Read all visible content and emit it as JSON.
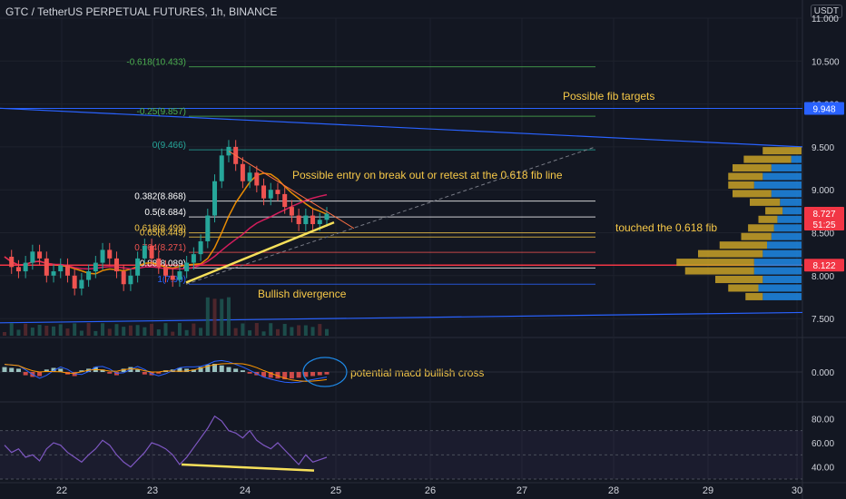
{
  "header": {
    "title": "GTC / TetherUS PERPETUAL FUTURES, 1h, BINANCE",
    "currency": "USDT"
  },
  "axis": {
    "price_ticks": [
      "11.000",
      "10.500",
      "10.000",
      "9.500",
      "9.000",
      "8.500",
      "8.000",
      "7.500"
    ],
    "price_values": [
      11.0,
      10.5,
      10.0,
      9.5,
      9.0,
      8.5,
      8.0,
      7.5
    ],
    "macd_ticks": [
      "0.000"
    ],
    "rsi_ticks": [
      "80.00",
      "60.00",
      "40.00"
    ],
    "rsi_values": [
      80,
      60,
      40
    ],
    "date_ticks": [
      "22",
      "23",
      "24",
      "25",
      "26",
      "27",
      "28",
      "29",
      "30"
    ],
    "badges": [
      {
        "text": "9.948",
        "value": 9.948,
        "color": "#2962ff"
      },
      {
        "text": "8.727",
        "value": 8.727,
        "color": "#f23645"
      },
      {
        "text": "51:25",
        "value": 8.6,
        "color": "#f23645"
      },
      {
        "text": "8.122",
        "value": 8.122,
        "color": "#f23645"
      }
    ]
  },
  "fib_levels": [
    {
      "label": "-0.618(10.433)",
      "value": 10.433,
      "color": "#4caf50"
    },
    {
      "label": "-0.25(9.857)",
      "value": 9.857,
      "color": "#4caf50"
    },
    {
      "label": "0(9.466)",
      "value": 9.466,
      "color": "#26a69a"
    },
    {
      "label": "0.382(8.868)",
      "value": 8.868,
      "color": "#ffffff"
    },
    {
      "label": "0.5(8.684)",
      "value": 8.684,
      "color": "#ffffff"
    },
    {
      "label": "0.618(8.499)",
      "value": 8.499,
      "color": "#f7c948"
    },
    {
      "label": "0.65(8.449)",
      "value": 8.449,
      "color": "#f7c948"
    },
    {
      "label": "0.764(8.271)",
      "value": 8.271,
      "color": "#ef5350"
    },
    {
      "label": "0.88(8.089)",
      "value": 8.089,
      "color": "#ffffff"
    },
    {
      "label": "1(7.90)",
      "value": 7.9,
      "color": "#2962ff"
    }
  ],
  "annotations": [
    {
      "text": "Possible fib targets",
      "color": "#f7c948"
    },
    {
      "text": "Possible entry on break out or retest at the 0.618 fib line",
      "color": "#f7c948"
    },
    {
      "text": "touched the 0.618 fib",
      "color": "#f7c948"
    },
    {
      "text": "Bullish divergence",
      "color": "#f7c948"
    },
    {
      "text": "potential macd bullish cross",
      "color": "#f7c948"
    }
  ],
  "chart_data": {
    "type": "candlestick",
    "title": "GTC / TetherUS PERPETUAL FUTURES, 1h, BINANCE",
    "x_axis_dates": [
      "22",
      "23",
      "24",
      "25",
      "26",
      "27",
      "28",
      "29",
      "30"
    ],
    "y_range": [
      7.3,
      11.0
    ],
    "price_path": [
      8.22,
      8.1,
      8.05,
      8.15,
      8.28,
      8.2,
      8.0,
      8.05,
      8.12,
      8.0,
      7.85,
      7.95,
      8.05,
      8.15,
      8.3,
      8.2,
      8.05,
      7.9,
      8.0,
      8.2,
      8.35,
      8.2,
      8.1,
      8.0,
      7.95,
      8.05,
      8.15,
      8.25,
      8.4,
      8.7,
      9.1,
      9.4,
      9.5,
      9.3,
      9.1,
      9.2,
      9.05,
      8.9,
      9.0,
      8.95,
      8.8,
      8.7,
      8.6,
      8.7,
      8.6,
      8.65,
      8.72
    ],
    "resistance_line": {
      "start": 9.95,
      "end": 9.5
    },
    "support_line": {
      "start": 7.45,
      "end": 7.57
    },
    "fib_levels": [
      10.433,
      9.857,
      9.466,
      8.868,
      8.684,
      8.499,
      8.449,
      8.271,
      8.089,
      7.9
    ],
    "horizontal_red_line": 8.122,
    "last_price": 8.727,
    "volume_profile": [
      {
        "price": 9.45,
        "buy": 0.45,
        "sell": 0.0
      },
      {
        "price": 9.35,
        "buy": 0.55,
        "sell": 0.12
      },
      {
        "price": 9.25,
        "buy": 0.45,
        "sell": 0.35
      },
      {
        "price": 9.15,
        "buy": 0.4,
        "sell": 0.45
      },
      {
        "price": 9.05,
        "buy": 0.3,
        "sell": 0.55
      },
      {
        "price": 8.95,
        "buy": 0.45,
        "sell": 0.35
      },
      {
        "price": 8.85,
        "buy": 0.35,
        "sell": 0.25
      },
      {
        "price": 8.75,
        "buy": 0.2,
        "sell": 0.22
      },
      {
        "price": 8.65,
        "buy": 0.22,
        "sell": 0.28
      },
      {
        "price": 8.55,
        "buy": 0.3,
        "sell": 0.32
      },
      {
        "price": 8.45,
        "buy": 0.35,
        "sell": 0.35
      },
      {
        "price": 8.35,
        "buy": 0.55,
        "sell": 0.4
      },
      {
        "price": 8.25,
        "buy": 0.75,
        "sell": 0.45
      },
      {
        "price": 8.15,
        "buy": 0.9,
        "sell": 0.55
      },
      {
        "price": 8.05,
        "buy": 0.8,
        "sell": 0.55
      },
      {
        "price": 7.95,
        "buy": 0.55,
        "sell": 0.45
      },
      {
        "price": 7.85,
        "buy": 0.35,
        "sell": 0.5
      },
      {
        "price": 7.75,
        "buy": 0.2,
        "sell": 0.45
      }
    ],
    "macd_hist": [
      0.6,
      0.5,
      0.4,
      -0.4,
      -0.6,
      -0.5,
      0.3,
      0.5,
      0.4,
      -0.3,
      -0.5,
      0.2,
      0.4,
      0.6,
      0.3,
      -0.2,
      -0.4,
      0.4,
      0.6,
      0.3,
      -0.3,
      -0.4,
      -0.2,
      0.2,
      0.3,
      0.5,
      0.4,
      0.3,
      0.6,
      0.9,
      1.0,
      0.8,
      0.6,
      0.4,
      0.2,
      -0.2,
      -0.4,
      -0.6,
      -0.7,
      -0.8,
      -0.9,
      -0.8,
      -0.7,
      -0.6,
      -0.5,
      -0.4,
      -0.3
    ],
    "rsi": [
      58,
      52,
      55,
      48,
      50,
      45,
      55,
      60,
      58,
      52,
      48,
      44,
      50,
      55,
      62,
      58,
      50,
      44,
      40,
      46,
      52,
      60,
      58,
      55,
      50,
      42,
      48,
      56,
      64,
      72,
      82,
      78,
      70,
      68,
      64,
      70,
      62,
      58,
      55,
      60,
      54,
      48,
      42,
      50,
      44,
      46,
      48
    ],
    "rsi_divergence_line": {
      "start": 42,
      "end": 37
    }
  }
}
